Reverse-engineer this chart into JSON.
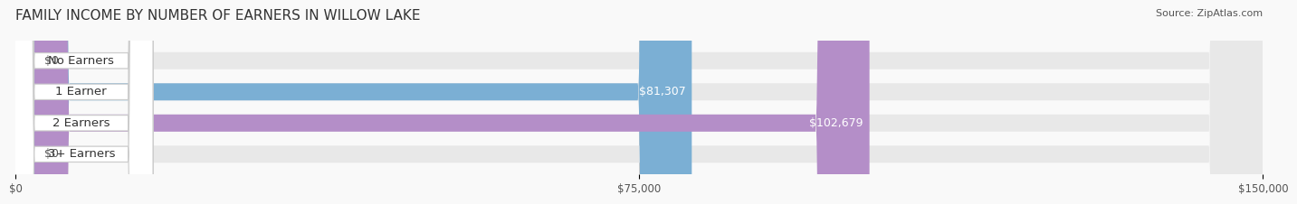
{
  "title": "FAMILY INCOME BY NUMBER OF EARNERS IN WILLOW LAKE",
  "source": "Source: ZipAtlas.com",
  "categories": [
    "No Earners",
    "1 Earner",
    "2 Earners",
    "3+ Earners"
  ],
  "values": [
    0,
    81307,
    102679,
    0
  ],
  "bar_colors": [
    "#f4a0a0",
    "#7bafd4",
    "#b48ec8",
    "#7dcfcf"
  ],
  "label_colors": [
    "#f4a0a0",
    "#7bafd4",
    "#b48ec8",
    "#7dcfcf"
  ],
  "value_labels": [
    "$0",
    "$81,307",
    "$102,679",
    "$0"
  ],
  "xlim": [
    0,
    150000
  ],
  "xtick_values": [
    0,
    75000,
    150000
  ],
  "xtick_labels": [
    "$0",
    "$75,000",
    "$150,000"
  ],
  "background_color": "#f5f5f5",
  "bar_background_color": "#e8e8e8",
  "title_fontsize": 11,
  "label_fontsize": 9.5,
  "value_fontsize": 9,
  "bar_height": 0.55,
  "fig_width": 14.06,
  "fig_height": 2.32
}
